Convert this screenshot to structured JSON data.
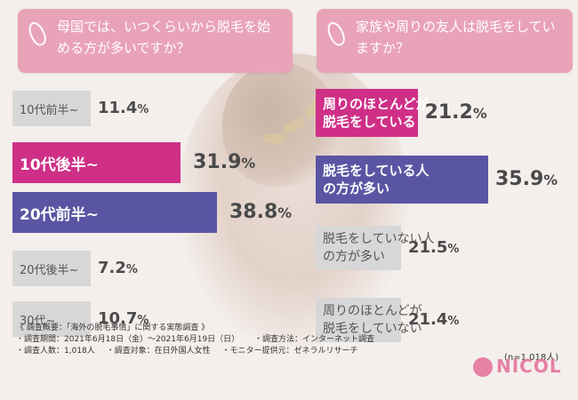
{
  "questions": {
    "left": "母国では、いつくらいから脱毛を始める方が多いですか？",
    "right": "家族や周りの友人は脱毛をしていますか？"
  },
  "chart_data": [
    {
      "type": "bar",
      "orientation": "horizontal",
      "title": "母国では、いつくらいから脱毛を始める方が多いですか？",
      "categories": [
        "10代前半~",
        "10代後半~",
        "20代前半~",
        "20代後半~",
        "30代~"
      ],
      "values": [
        11.4,
        31.9,
        38.8,
        7.2,
        10.7
      ],
      "value_suffix": "%",
      "colors": [
        "#d7d7d7",
        "#cf2f87",
        "#5a55a3",
        "#d7d7d7",
        "#d7d7d7"
      ]
    },
    {
      "type": "bar",
      "orientation": "horizontal",
      "title": "家族や周りの友人は脱毛をしていますか？",
      "categories": [
        "周りのほとんどが脱毛をしている",
        "脱毛をしている人の方が多い",
        "脱毛をしていない人の方が多い",
        "周りのほとんどが脱毛をしていない"
      ],
      "category_lines": [
        [
          "周りのほとんどが",
          "脱毛をしている"
        ],
        [
          "脱毛をしている人",
          "の方が多い"
        ],
        [
          "脱毛をしていない人",
          "の方が多い"
        ],
        [
          "周りのほとんどが",
          "脱毛をしていない"
        ]
      ],
      "values": [
        21.2,
        35.9,
        21.5,
        21.4
      ],
      "value_suffix": "%",
      "colors": [
        "#cf2f87",
        "#5a55a3",
        "#d7d7d7",
        "#d7d7d7"
      ]
    }
  ],
  "sample_size": "(n=1,018人)",
  "survey": {
    "lines": [
      [
        "《 調査概要：「海外の脱毛事情」に関する実態調査 》"
      ],
      [
        "・調査期間：2021年6月18日（金）〜2021年6月19日（日）",
        "・調査方法：インターネット調査"
      ],
      [
        "・調査人数：1,018人",
        "・調査対象：在日外国人女性",
        "・モニター提供元：ゼネラルリサーチ"
      ]
    ]
  },
  "logo": {
    "text": "NICOL",
    "color": "#e680a4"
  }
}
